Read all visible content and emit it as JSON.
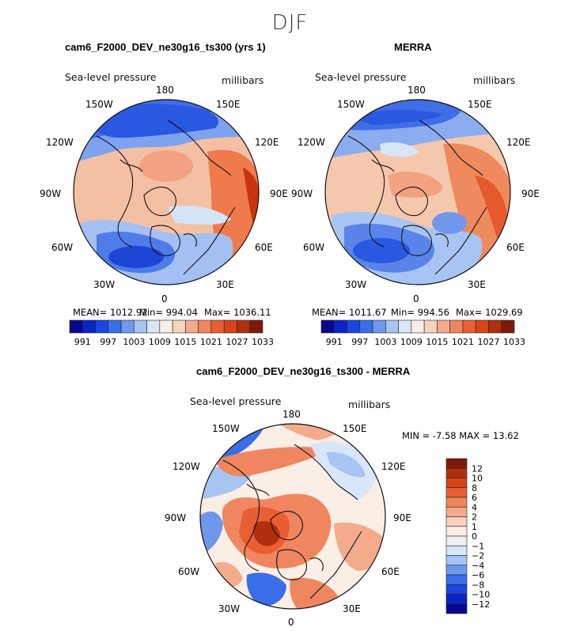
{
  "page_title": "DJF",
  "panels": [
    {
      "title": "cam6_F2000_DEV_ne30g16_ts300 (yrs 1)",
      "variable": "Sea-level pressure",
      "units": "millibars",
      "stats": {
        "mean": "MEAN= 1012.92",
        "min": "Min= 994.04",
        "max": "Max= 1036.11"
      }
    },
    {
      "title": "MERRA",
      "variable": "Sea-level pressure",
      "units": "millibars",
      "stats": {
        "mean": "MEAN= 1011.67",
        "min": "Min= 994.56",
        "max": "Max= 1029.69"
      }
    },
    {
      "title": "cam6_F2000_DEV_ne30g16_ts300 - MERRA",
      "variable": "Sea-level pressure",
      "units": "millibars",
      "stats": {
        "minmax": "MIN = -7.58 MAX = 13.62"
      }
    }
  ],
  "longitude_labels": [
    "180",
    "150E",
    "120E",
    "90E",
    "60E",
    "30E",
    "0",
    "30W",
    "60W",
    "90W",
    "120W",
    "150W"
  ],
  "chart_data": [
    {
      "type": "heatmap",
      "projection": "north polar stereographic",
      "title": "cam6_F2000_DEV_ne30g16_ts300 (yrs 1)",
      "field": "Sea-level pressure",
      "units": "millibars",
      "mean": 1012.92,
      "min": 994.04,
      "max": 1036.11,
      "colorbar_ticks": [
        991,
        997,
        1003,
        1009,
        1015,
        1021,
        1027,
        1033
      ],
      "colorbar_levels": [
        991,
        994,
        997,
        1000,
        1003,
        1006,
        1009,
        1012,
        1015,
        1018,
        1021,
        1024,
        1027,
        1030,
        1033
      ]
    },
    {
      "type": "heatmap",
      "projection": "north polar stereographic",
      "title": "MERRA",
      "field": "Sea-level pressure",
      "units": "millibars",
      "mean": 1011.67,
      "min": 994.56,
      "max": 1029.69,
      "colorbar_ticks": [
        991,
        997,
        1003,
        1009,
        1015,
        1021,
        1027,
        1033
      ],
      "colorbar_levels": [
        991,
        994,
        997,
        1000,
        1003,
        1006,
        1009,
        1012,
        1015,
        1018,
        1021,
        1024,
        1027,
        1030,
        1033
      ]
    },
    {
      "type": "heatmap",
      "projection": "north polar stereographic",
      "title": "cam6_F2000_DEV_ne30g16_ts300 - MERRA",
      "field": "Sea-level pressure",
      "units": "millibars",
      "min": -7.58,
      "max": 13.62,
      "colorbar_ticks": [
        "12",
        "10",
        "8",
        "6",
        "4",
        "2",
        "1",
        "0",
        "−1",
        "−2",
        "−4",
        "−6",
        "−8",
        "−10",
        "−12"
      ],
      "colorbar_levels": [
        -12,
        -10,
        -8,
        -6,
        -4,
        -2,
        -1,
        0,
        1,
        2,
        4,
        6,
        8,
        10,
        12
      ]
    }
  ],
  "colors": {
    "abs_scale": [
      "#08088f",
      "#0b24c8",
      "#1a45e0",
      "#3a6ee8",
      "#6f98ec",
      "#a8c4f2",
      "#d8e6f8",
      "#fbeee6",
      "#f7d2bc",
      "#f3ab8c",
      "#ef8660",
      "#ea5e34",
      "#d84418",
      "#b0300e",
      "#7f1a08"
    ],
    "diff_scale": [
      "#7f1a08",
      "#b0300e",
      "#d84418",
      "#ea5e34",
      "#ef8660",
      "#f3ab8c",
      "#f7d2bc",
      "#fbeee6",
      "#f0f0f4",
      "#d8e6f8",
      "#a8c4f2",
      "#6f98ec",
      "#3a6ee8",
      "#1a45e0",
      "#0b24c8",
      "#08088f"
    ]
  }
}
